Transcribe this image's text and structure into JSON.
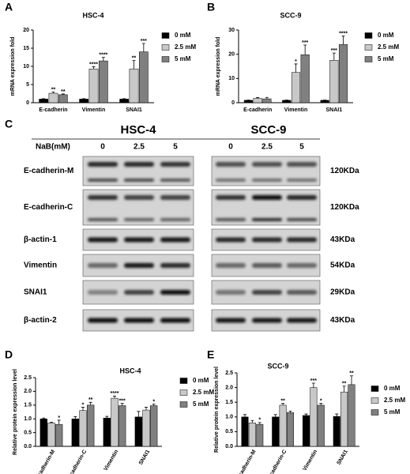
{
  "chart_data": [
    {
      "type": "bar",
      "panel": "A",
      "title": "HSC-4",
      "ylabel": "mRNA expression fold",
      "categories": [
        "E-cadherin",
        "Vimentin",
        "SNAI1"
      ],
      "series": [
        {
          "name": "0 mM",
          "color": "#000000",
          "values": [
            1,
            1,
            1
          ],
          "errors": [
            0.1,
            0.1,
            0.1
          ],
          "significance": [
            null,
            null,
            null
          ]
        },
        {
          "name": "2.5 mM",
          "color": "#c8c8c8",
          "values": [
            2.6,
            9.3,
            9.3
          ],
          "errors": [
            0.3,
            0.6,
            2.3
          ],
          "significance": [
            "**",
            "****",
            "**"
          ]
        },
        {
          "name": "5 mM",
          "color": "#808080",
          "values": [
            2.2,
            11.5,
            14
          ],
          "errors": [
            0.2,
            1.0,
            2.3
          ],
          "significance": [
            "**",
            "****",
            "***"
          ]
        }
      ],
      "ylim": [
        0,
        20
      ],
      "yticks": [
        0,
        5,
        10,
        15,
        20
      ],
      "legend": "right"
    },
    {
      "type": "bar",
      "panel": "B",
      "title": "SCC-9",
      "ylabel": "mRNA expression fold",
      "categories": [
        "E-cadherin",
        "Vimentin",
        "SNAI1"
      ],
      "series": [
        {
          "name": "0 mM",
          "color": "#000000",
          "values": [
            1,
            1,
            1
          ],
          "errors": [
            0.1,
            0.1,
            0.1
          ],
          "significance": [
            null,
            null,
            null
          ]
        },
        {
          "name": "2.5 mM",
          "color": "#c8c8c8",
          "values": [
            1.8,
            12.5,
            17.5
          ],
          "errors": [
            0.3,
            3.5,
            3.0
          ],
          "significance": [
            null,
            "*",
            "***"
          ]
        },
        {
          "name": "5 mM",
          "color": "#808080",
          "values": [
            1.6,
            19.8,
            24
          ],
          "errors": [
            0.6,
            4.0,
            3.5
          ],
          "significance": [
            null,
            "***",
            "****"
          ]
        }
      ],
      "ylim": [
        0,
        30
      ],
      "yticks": [
        0,
        10,
        20,
        30
      ],
      "legend": "right"
    },
    {
      "type": "bar",
      "panel": "D",
      "title": "HSC-4",
      "ylabel": "Relative protein expression level",
      "categories": [
        "E-cadherin-M",
        "E-cadherin-C",
        "Vimentin",
        "SNAI1"
      ],
      "series": [
        {
          "name": "0 mM",
          "color": "#000000",
          "values": [
            1,
            1,
            1.03,
            1.07
          ],
          "errors": [
            0.03,
            0.08,
            0.06,
            0.2
          ],
          "significance": [
            null,
            null,
            null,
            null
          ]
        },
        {
          "name": "2.5 mM",
          "color": "#c8c8c8",
          "values": [
            0.85,
            1.3,
            1.75,
            1.32
          ],
          "errors": [
            0.03,
            0.12,
            0.08,
            0.1
          ],
          "significance": [
            null,
            "*",
            "****",
            null
          ]
        },
        {
          "name": "5 mM",
          "color": "#808080",
          "values": [
            0.8,
            1.5,
            1.48,
            1.48
          ],
          "errors": [
            0.15,
            0.1,
            0.08,
            0.06
          ],
          "significance": [
            "*",
            "**",
            "***",
            "*"
          ]
        }
      ],
      "ylim": [
        0,
        2.5
      ],
      "yticks": [
        {
          "value": 0,
          "label": "0.0"
        },
        0.5,
        {
          "value": 1,
          "label": "1.0"
        },
        1.5,
        {
          "value": 2,
          "label": "2.0"
        },
        2.5
      ],
      "legend": "right"
    },
    {
      "type": "bar",
      "panel": "E",
      "title": "SCC-9",
      "ylabel": "Relative protein expression level",
      "categories": [
        "E-cadherin-M",
        "E-cadherin-C",
        "Vimentin",
        "SNAI1"
      ],
      "series": [
        {
          "name": "0 mM",
          "color": "#000000",
          "values": [
            1,
            1,
            1.05,
            1.02
          ],
          "errors": [
            0.08,
            0.08,
            0.05,
            0.08
          ],
          "significance": [
            null,
            null,
            null,
            null
          ]
        },
        {
          "name": "2.5 mM",
          "color": "#c8c8c8",
          "values": [
            0.8,
            1.4,
            2.0,
            1.85
          ],
          "errors": [
            0.08,
            0.06,
            0.15,
            0.2
          ],
          "significance": [
            null,
            "**",
            "***",
            "**"
          ]
        },
        {
          "name": "5 mM",
          "color": "#808080",
          "values": [
            0.75,
            1.15,
            1.4,
            2.1
          ],
          "errors": [
            0.06,
            0.05,
            0.06,
            0.3
          ],
          "significance": [
            "*",
            null,
            "*",
            "**"
          ]
        }
      ],
      "ylim": [
        0,
        2.5
      ],
      "yticks": [
        {
          "value": 0,
          "label": "0.0"
        },
        0.5,
        {
          "value": 1,
          "label": "1.0"
        },
        1.5,
        {
          "value": 2,
          "label": "2.0"
        },
        2.5
      ],
      "legend": "right"
    }
  ],
  "blot": {
    "panel": "C",
    "cell_lines": [
      "HSC-4",
      "SCC-9"
    ],
    "treatment_label": "NaB(mM)",
    "doses": [
      "0",
      "2.5",
      "5"
    ],
    "rows": [
      {
        "protein": "E-cadherin-M",
        "size": "120KDa"
      },
      {
        "protein": "E-cadherin-C",
        "size": "120KDa"
      },
      {
        "protein": "β-actin-1",
        "size": "43KDa"
      },
      {
        "protein": "Vimentin",
        "size": "54KDa"
      },
      {
        "protein": "SNAI1",
        "size": "29KDa"
      },
      {
        "protein": "β-actin-2",
        "size": "43KDa"
      }
    ]
  }
}
